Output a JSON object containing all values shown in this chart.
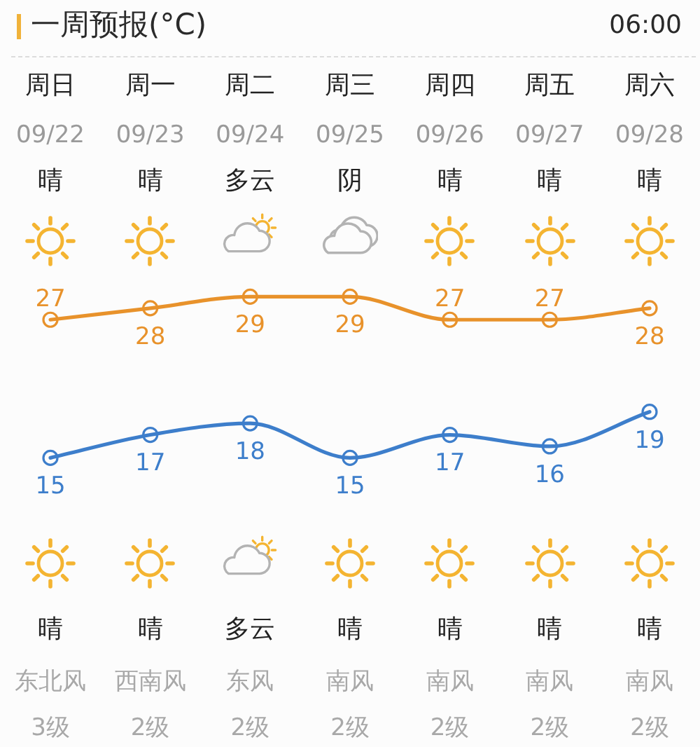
{
  "chart_data": {
    "type": "line",
    "title": "一周预报(°C)",
    "subtitle": "06:00",
    "categories": [
      "周日",
      "周一",
      "周二",
      "周三",
      "周四",
      "周五",
      "周六"
    ],
    "series": [
      {
        "color": "#e8922b",
        "values": [
          27,
          28,
          29,
          29,
          27,
          27,
          28
        ]
      },
      {
        "color": "#3d7ecb",
        "values": [
          15,
          17,
          18,
          15,
          17,
          16,
          19
        ]
      }
    ],
    "data_labels": true,
    "marker": "circle",
    "line_style": "solid",
    "tick_labels": "x",
    "annotations": [
      "09/22",
      "09/23",
      "09/24",
      "09/25",
      "09/26",
      "09/27",
      "09/28",
      "晴",
      "晴",
      "多云",
      "阴",
      "晴",
      "晴",
      "晴",
      "晴",
      "晴",
      "多云",
      "晴",
      "晴",
      "晴",
      "晴",
      "东北风",
      "西南风",
      "东风",
      "南风",
      "南风",
      "南风",
      "南风",
      "3级",
      "2级",
      "2级",
      "2级",
      "2级",
      "2级",
      "2级"
    ]
  }
}
